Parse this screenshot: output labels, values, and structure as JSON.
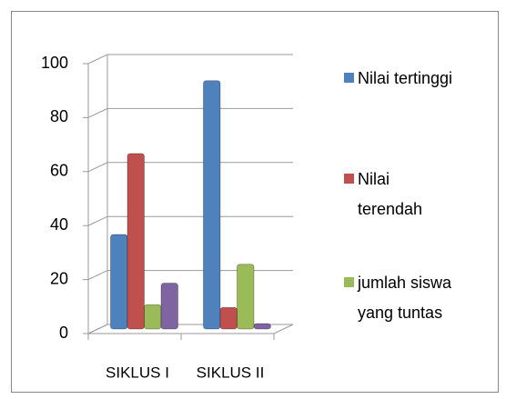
{
  "chart_data": {
    "type": "bar",
    "categories": [
      "SIKLUS I",
      "SIKLUS II"
    ],
    "series": [
      {
        "name": "Nilai tertinggi",
        "color": "#4f81bd",
        "values": [
          35,
          92
        ]
      },
      {
        "name": "Nilai terendah",
        "color": "#c0504d",
        "values": [
          65,
          8
        ]
      },
      {
        "name": "jumlah siswa yang tuntas",
        "color": "#9bbb59",
        "values": [
          9,
          24
        ]
      },
      {
        "color": "#8064a2",
        "values": [
          17,
          2
        ]
      }
    ],
    "ylim": [
      0,
      100
    ],
    "yticks": [
      0,
      20,
      40,
      60,
      80,
      100
    ],
    "grid": true
  }
}
